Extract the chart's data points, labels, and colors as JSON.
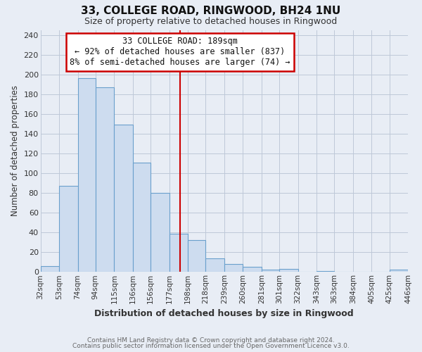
{
  "title": "33, COLLEGE ROAD, RINGWOOD, BH24 1NU",
  "subtitle": "Size of property relative to detached houses in Ringwood",
  "xlabel": "Distribution of detached houses by size in Ringwood",
  "ylabel": "Number of detached properties",
  "bar_edges": [
    32,
    53,
    74,
    94,
    115,
    136,
    156,
    177,
    198,
    218,
    239,
    260,
    281,
    301,
    322,
    343,
    363,
    384,
    405,
    425,
    446
  ],
  "bar_heights": [
    6,
    87,
    196,
    187,
    149,
    111,
    80,
    39,
    32,
    14,
    8,
    5,
    2,
    3,
    0,
    1,
    0,
    0,
    0,
    2
  ],
  "bar_color": "#cddcef",
  "bar_edge_color": "#6aa0cc",
  "vline_x": 189,
  "vline_color": "#cc0000",
  "ylim": [
    0,
    245
  ],
  "yticks": [
    0,
    20,
    40,
    60,
    80,
    100,
    120,
    140,
    160,
    180,
    200,
    220,
    240
  ],
  "annotation_title": "33 COLLEGE ROAD: 189sqm",
  "annotation_line1": "← 92% of detached houses are smaller (837)",
  "annotation_line2": "8% of semi-detached houses are larger (74) →",
  "annotation_box_color": "#ffffff",
  "annotation_box_edge_color": "#cc0000",
  "grid_color": "#bec8d8",
  "bg_color": "#e8edf5",
  "footer1": "Contains HM Land Registry data © Crown copyright and database right 2024.",
  "footer2": "Contains public sector information licensed under the Open Government Licence v3.0.",
  "tick_labels": [
    "32sqm",
    "53sqm",
    "74sqm",
    "94sqm",
    "115sqm",
    "136sqm",
    "156sqm",
    "177sqm",
    "198sqm",
    "218sqm",
    "239sqm",
    "260sqm",
    "281sqm",
    "301sqm",
    "322sqm",
    "343sqm",
    "363sqm",
    "384sqm",
    "405sqm",
    "425sqm",
    "446sqm"
  ]
}
